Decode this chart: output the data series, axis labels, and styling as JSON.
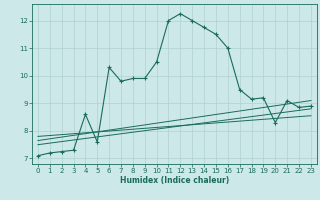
{
  "background_color": "#cce8e8",
  "grid_color": "#b0d0d0",
  "line_color": "#1a6b5a",
  "xlabel": "Humidex (Indice chaleur)",
  "xlim": [
    -0.5,
    23.5
  ],
  "ylim": [
    6.8,
    12.6
  ],
  "yticks": [
    7,
    8,
    9,
    10,
    11,
    12
  ],
  "xticks": [
    0,
    1,
    2,
    3,
    4,
    5,
    6,
    7,
    8,
    9,
    10,
    11,
    12,
    13,
    14,
    15,
    16,
    17,
    18,
    19,
    20,
    21,
    22,
    23
  ],
  "main_x": [
    0,
    1,
    2,
    3,
    4,
    5,
    6,
    7,
    8,
    9,
    10,
    11,
    12,
    13,
    14,
    15,
    16,
    17,
    18,
    19,
    20,
    21,
    22,
    23
  ],
  "main_y": [
    7.1,
    7.2,
    7.25,
    7.3,
    8.6,
    7.6,
    10.3,
    9.8,
    9.9,
    9.9,
    10.5,
    12.0,
    12.25,
    12.0,
    11.75,
    11.5,
    11.0,
    9.5,
    9.15,
    9.2,
    8.3,
    9.1,
    8.85,
    8.9
  ],
  "line1_x": [
    0,
    23
  ],
  "line1_y": [
    7.5,
    8.8
  ],
  "line2_x": [
    0,
    23
  ],
  "line2_y": [
    7.65,
    9.1
  ],
  "line3_x": [
    0,
    23
  ],
  "line3_y": [
    7.8,
    8.55
  ]
}
